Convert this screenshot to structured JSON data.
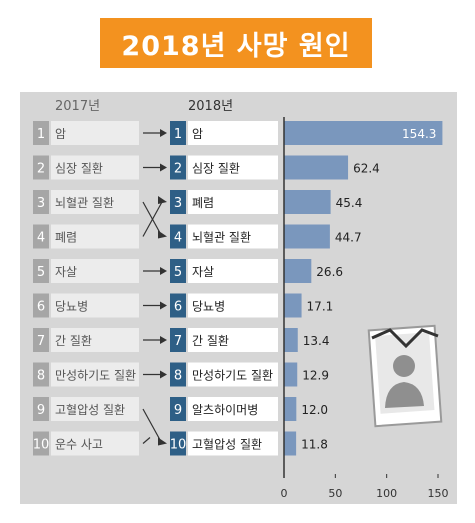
{
  "chart_data": {
    "type": "bar",
    "title": "2018년 사망 원인",
    "col_2017_header": "2017년",
    "col_2018_header": "2018년",
    "ranks": [
      "1",
      "2",
      "3",
      "4",
      "5",
      "6",
      "7",
      "8",
      "9",
      "10"
    ],
    "causes_2017": [
      "암",
      "심장 질환",
      "뇌혈관 질환",
      "폐렴",
      "자살",
      "당뇨병",
      "간 질환",
      "만성하기도 질환",
      "고혈압성 질환",
      "운수 사고"
    ],
    "causes_2018": [
      "암",
      "심장 질환",
      "폐렴",
      "뇌혈관 질환",
      "자살",
      "당뇨병",
      "간 질환",
      "만성하기도 질환",
      "알츠하이머병",
      "고혈압성 질환"
    ],
    "values": [
      154.3,
      62.4,
      45.4,
      44.7,
      26.6,
      17.1,
      13.4,
      12.9,
      12.0,
      11.8
    ],
    "value_labels": [
      "154.3",
      "62.4",
      "45.4",
      "44.7",
      "26.6",
      "17.1",
      "13.4",
      "12.9",
      "12.0",
      "11.8"
    ],
    "xlim": [
      0,
      150
    ],
    "xticks": [
      "0",
      "50",
      "100",
      "150"
    ],
    "colors": {
      "title_bg": "#f3921f",
      "bar": "#7a97bd",
      "rank_2018": "#2e5f86",
      "rank_2017": "#a6a6a6",
      "panel": "#d6d6d6"
    }
  }
}
